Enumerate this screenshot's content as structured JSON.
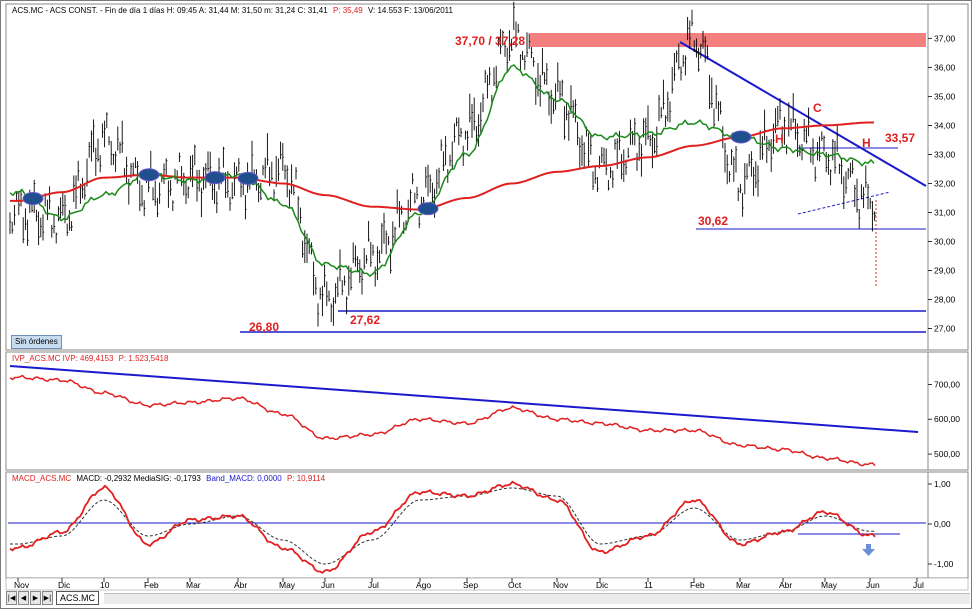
{
  "panels": {
    "price": {
      "header": "ACS.MC - ACS CONST. - Fin de día 1 días  H: 09:45  A: 31,44  M: 31,50  m: 31,24  C: 31,41",
      "header_red": "P: 35,49",
      "header_tail": "V: 14.553  F: 13/06/2011",
      "y_ticks": [
        "37,00",
        "36,00",
        "35,00",
        "34,00",
        "33,00",
        "32,00",
        "31,00",
        "30,00",
        "29,00",
        "28,00",
        "27,00"
      ],
      "annotations": {
        "resistance": "37,70 / 37,28",
        "level_3357": "33,57",
        "level_3062": "30,62",
        "level_2762": "27,62",
        "level_2680": "26,80",
        "label_h1": "H",
        "label_c": "C",
        "label_h2": "H"
      }
    },
    "ivp": {
      "header": "IVP_ACS.MC  IVP: 469,4153",
      "header_red": "P: 1.523,5418",
      "y_ticks": [
        "700,00",
        "600,00",
        "500,00"
      ]
    },
    "macd": {
      "header_red1": "MACD_ACS.MC",
      "header_mid": "MACD: -0,2932  MediaSIG: -0,1793",
      "header_blue": "Band_MACD: 0,0000",
      "header_red2": "P: 10,9114",
      "y_ticks": [
        "1,00",
        "0,00",
        "-1,00"
      ]
    }
  },
  "x_ticks": [
    "Nov",
    "Dic",
    "10",
    "Feb",
    "Mar",
    "Abr",
    "May",
    "Jun",
    "Jul",
    "Ago",
    "Sep",
    "Oct",
    "Nov",
    "Dic",
    "11",
    "Feb",
    "Mar",
    "Abr",
    "May",
    "Jun",
    "Jul"
  ],
  "orders_button": "Sin órdenes",
  "symbol_tab": "ACS.MC",
  "nav_buttons": [
    "|◀",
    "◀",
    "▶",
    "▶|"
  ],
  "colors": {
    "price_bars": "#000000",
    "ma_long": "#e02020",
    "ma_short": "#1a8a1a",
    "trendline": "#1a1acc",
    "resistance_zone": "#f47f7f",
    "ivp_line": "#e02020",
    "macd_line": "#e02020",
    "signal_line": "#333333",
    "band_line": "#1a1acc",
    "cross_marker": "#1f4f8f"
  },
  "chart_data": [
    {
      "type": "line",
      "panel": "price",
      "x": [
        "Nov",
        "Dic",
        "10",
        "Feb",
        "Mar",
        "Abr",
        "May",
        "Jun",
        "Jul",
        "Ago",
        "Sep",
        "Oct",
        "Nov",
        "Dic",
        "11",
        "Feb",
        "Mar",
        "Abr",
        "May",
        "Jun"
      ],
      "series": [
        {
          "name": "",
          "kind": "close",
          "values": [
            31.0,
            30.8,
            33.5,
            31.8,
            32.2,
            32.0,
            32.5,
            28.0,
            29.5,
            31.5,
            33.8,
            37.0,
            35.0,
            32.5,
            33.5,
            37.0,
            32.0,
            34.0,
            33.0,
            31.4
          ]
        },
        {
          "name": "",
          "kind": "ma_long",
          "values": [
            31.4,
            31.7,
            32.2,
            32.3,
            32.2,
            32.2,
            32.0,
            31.6,
            31.2,
            31.1,
            31.5,
            32.0,
            32.4,
            32.6,
            32.9,
            33.3,
            33.6,
            33.9,
            34.0,
            34.1
          ]
        },
        {
          "name": "",
          "kind": "ma_short",
          "values": [
            31.7,
            30.8,
            31.6,
            32.3,
            32.1,
            32.3,
            31.3,
            29.2,
            28.9,
            31.0,
            33.0,
            36.0,
            34.9,
            33.6,
            33.7,
            34.1,
            33.6,
            33.2,
            33.0,
            32.7
          ]
        }
      ],
      "ylim": [
        26.4,
        37.7
      ]
    },
    {
      "type": "line",
      "panel": "ivp",
      "x": [
        "Nov",
        "Dic",
        "10",
        "Feb",
        "Mar",
        "Abr",
        "May",
        "Jun",
        "Jul",
        "Ago",
        "Sep",
        "Oct",
        "Nov",
        "Dic",
        "11",
        "Feb",
        "Mar",
        "Abr",
        "May",
        "Jun"
      ],
      "series": [
        {
          "name": "",
          "kind": "ivp",
          "values": [
            720,
            712,
            675,
            640,
            648,
            660,
            615,
            545,
            556,
            600,
            588,
            632,
            600,
            588,
            568,
            568,
            525,
            513,
            488,
            470
          ]
        }
      ],
      "ylim": [
        460,
        770
      ]
    },
    {
      "type": "line",
      "panel": "macd",
      "x": [
        "Nov",
        "Dic",
        "10",
        "Feb",
        "Mar",
        "Abr",
        "May",
        "Jun",
        "Jul",
        "Ago",
        "Sep",
        "Oct",
        "Nov",
        "Dic",
        "11",
        "Feb",
        "Mar",
        "Abr",
        "May",
        "Jun"
      ],
      "series": [
        {
          "name": "",
          "kind": "macd",
          "values": [
            -0.6,
            -0.2,
            0.9,
            -0.5,
            0.1,
            0.2,
            -0.6,
            -1.2,
            -0.2,
            0.8,
            0.7,
            1.0,
            0.6,
            -0.7,
            -0.3,
            0.6,
            -0.5,
            -0.2,
            0.3,
            -0.29
          ]
        },
        {
          "name": "",
          "kind": "signal",
          "values": [
            -0.5,
            -0.3,
            0.6,
            -0.3,
            0.0,
            0.2,
            -0.4,
            -1.0,
            -0.4,
            0.6,
            0.7,
            0.9,
            0.7,
            -0.5,
            -0.3,
            0.4,
            -0.4,
            -0.2,
            0.2,
            -0.18
          ]
        }
      ],
      "ylim": [
        -1.3,
        1.05
      ]
    }
  ]
}
